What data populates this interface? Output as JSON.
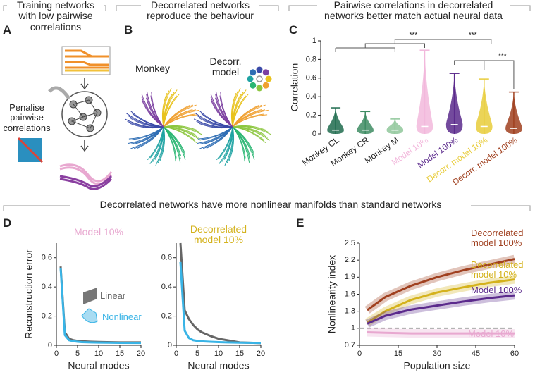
{
  "headers": [
    "Training networks with low pairwise correlations",
    "Decorrelated networks reproduce the behaviour",
    "Pairwise correlations in decorrelated networks better match actual neural data",
    "Decorrelated networks have more nonlinear manifolds than standard networks"
  ],
  "panel_labels": [
    "A",
    "B",
    "C",
    "D",
    "E"
  ],
  "panel_a": {
    "text": "Penalise pairwise correlations"
  },
  "panel_b": {
    "labels": [
      "Monkey",
      "Decorr. model"
    ]
  },
  "chart_data": [
    {
      "type": "violin",
      "categories": [
        "Monkey CL",
        "Monkey CR",
        "Monkey M",
        "Model 10%",
        "Model 100%",
        "Decorr. model 10%",
        "Decorr. model 100%"
      ],
      "values": [
        0.28,
        0.24,
        0.16,
        0.9,
        0.65,
        0.59,
        0.45
      ],
      "medians": [
        0.04,
        0.04,
        0.04,
        0.08,
        0.1,
        0.08,
        0.06
      ],
      "colors": [
        "#1e6b4e",
        "#3e8c63",
        "#8fc79a",
        "#f2b8dc",
        "#5b2a8c",
        "#e8cc3a",
        "#a0401f"
      ],
      "ylabel": "Correlation",
      "ylim": [
        0,
        1
      ],
      "yticks": [
        0,
        0.2,
        0.4,
        0.6,
        0.8,
        1
      ],
      "annotations": [
        "***",
        "***",
        "***"
      ]
    },
    {
      "type": "line",
      "title": "Model 10%",
      "title_color": "#e8a8d0",
      "xlabel": "Neural modes",
      "ylabel": "Reconstruction error",
      "x": [
        1,
        2,
        3,
        4,
        5,
        6,
        8,
        10,
        12,
        15,
        20
      ],
      "xlim": [
        0,
        20
      ],
      "xticks": [
        0,
        5,
        10,
        15,
        20
      ],
      "ylim": [
        0,
        0.7
      ],
      "yticks": [
        0,
        0.2,
        0.4,
        0.6
      ],
      "legend": true,
      "series": [
        {
          "name": "Linear",
          "color": "#666666",
          "values": [
            0.54,
            0.09,
            0.045,
            0.035,
            0.03,
            0.028,
            0.025,
            0.023,
            0.022,
            0.02,
            0.02
          ]
        },
        {
          "name": "Nonlinear",
          "color": "#39b4e6",
          "values": [
            0.53,
            0.07,
            0.035,
            0.028,
            0.024,
            0.022,
            0.02,
            0.019,
            0.018,
            0.017,
            0.016
          ]
        }
      ]
    },
    {
      "type": "line",
      "title": "Decorrelated model 10%",
      "title_color": "#d4b21c",
      "xlabel": "Neural modes",
      "x": [
        1,
        2,
        3,
        4,
        5,
        6,
        8,
        10,
        12,
        15,
        20
      ],
      "xlim": [
        0,
        20
      ],
      "xticks": [
        0,
        5,
        10,
        15,
        20
      ],
      "ylim": [
        0,
        0.7
      ],
      "yticks": [
        0,
        0.2,
        0.4,
        0.6
      ],
      "legend": false,
      "series": [
        {
          "name": "Linear",
          "color": "#666666",
          "values": [
            0.7,
            0.24,
            0.18,
            0.14,
            0.11,
            0.09,
            0.065,
            0.045,
            0.035,
            0.02,
            0.015
          ]
        },
        {
          "name": "Nonlinear",
          "color": "#39b4e6",
          "values": [
            0.57,
            0.1,
            0.05,
            0.035,
            0.03,
            0.027,
            0.024,
            0.022,
            0.02,
            0.018,
            0.016
          ]
        }
      ]
    },
    {
      "type": "line",
      "xlabel": "Population size",
      "ylabel": "Nonlinearity index",
      "x": [
        3,
        10,
        20,
        30,
        40,
        50,
        60
      ],
      "xlim": [
        0,
        60
      ],
      "xticks": [
        0,
        15,
        30,
        45,
        60
      ],
      "ylim": [
        0.7,
        2.5
      ],
      "yticks": [
        0.7,
        1,
        1.3,
        1.6,
        1.9,
        2.2,
        2.5
      ],
      "reference_line": 1,
      "legend": true,
      "series": [
        {
          "name": "Decorrelated model 100%",
          "color": "#a0401f",
          "values": [
            1.32,
            1.55,
            1.75,
            1.9,
            2.02,
            2.12,
            2.22
          ]
        },
        {
          "name": "Decorrelated model 10%",
          "color": "#d4b21c",
          "values": [
            1.1,
            1.3,
            1.5,
            1.63,
            1.72,
            1.8,
            1.86
          ]
        },
        {
          "name": "Model 100%",
          "color": "#5b2a8c",
          "values": [
            1.08,
            1.22,
            1.33,
            1.4,
            1.47,
            1.53,
            1.58
          ]
        },
        {
          "name": "Model 10%",
          "color": "#e8a8d0",
          "values": [
            0.93,
            0.92,
            0.91,
            0.91,
            0.91,
            0.91,
            0.91
          ]
        }
      ]
    }
  ]
}
